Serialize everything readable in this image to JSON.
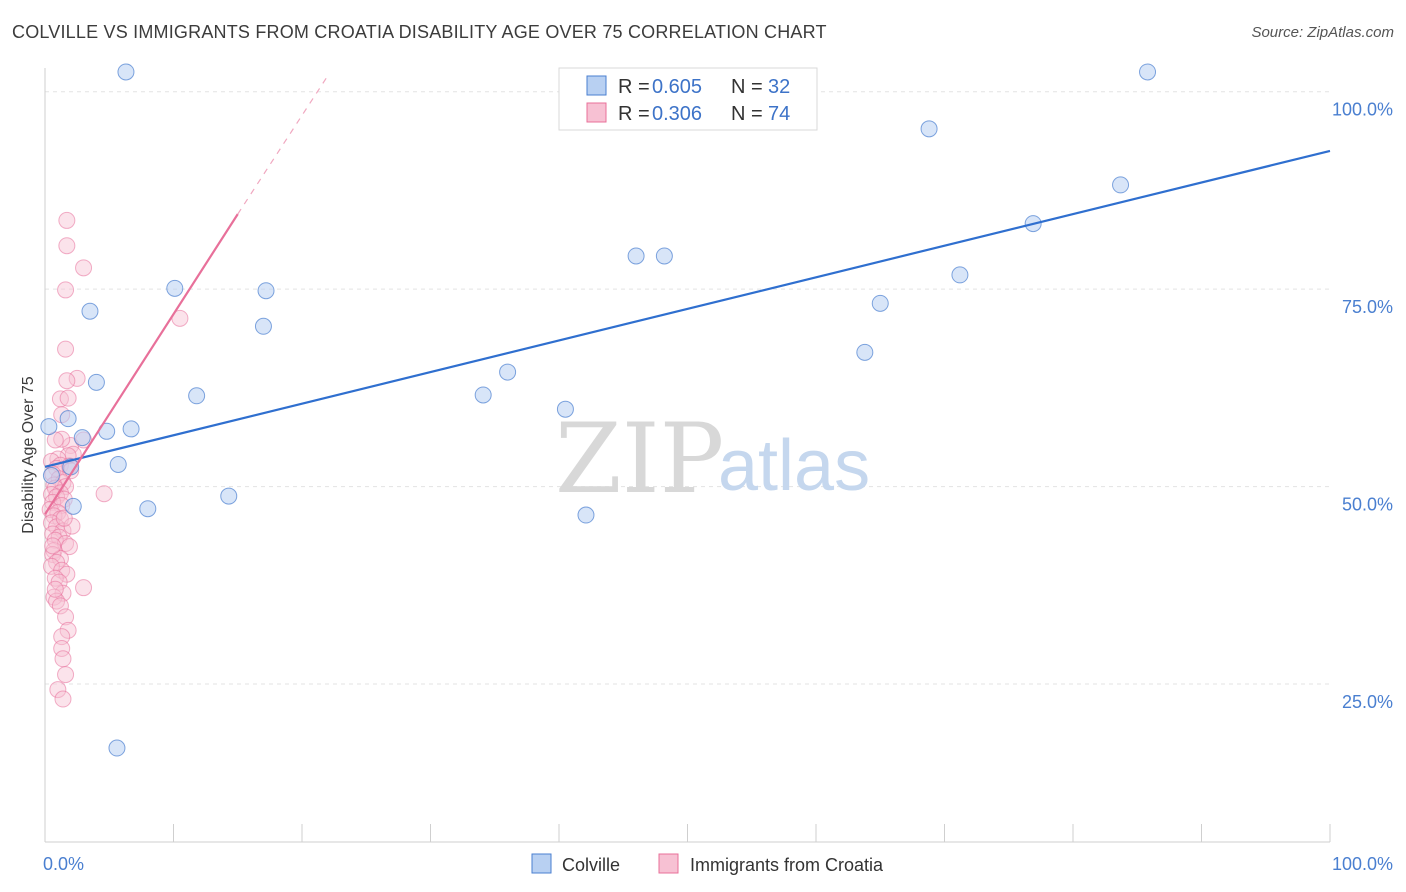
{
  "title": "COLVILLE VS IMMIGRANTS FROM CROATIA DISABILITY AGE OVER 75 CORRELATION CHART",
  "source": "Source: ZipAtlas.com",
  "watermark": {
    "zip": "ZIP",
    "atlas": "atlas"
  },
  "colors": {
    "blue": "#4a7fd0",
    "blue_fill": "#b8d0f2",
    "pink": "#e8709a",
    "pink_fill": "#f7c1d3",
    "grid": "#e3e3e3"
  },
  "legend": {
    "rows": [
      {
        "r_label": "R = ",
        "r_value": "0.605",
        "n_label": "N = ",
        "n_value": "32"
      },
      {
        "r_label": "R = ",
        "r_value": "0.306",
        "n_label": "N = ",
        "n_value": "74"
      }
    ]
  },
  "bottom_legend": [
    "Colville",
    "Immigrants from Croatia"
  ],
  "chart_data": {
    "type": "scatter",
    "title": "COLVILLE VS IMMIGRANTS FROM CROATIA DISABILITY AGE OVER 75 CORRELATION CHART",
    "xlabel": "",
    "ylabel": "Disability Age Over 75",
    "xlim": [
      0,
      100
    ],
    "ylim": [
      5,
      103
    ],
    "x_tick_labels": [
      "0.0%",
      "100.0%"
    ],
    "y_tick_labels": [
      {
        "value": 100,
        "label": "100.0%"
      },
      {
        "value": 75,
        "label": "75.0%"
      },
      {
        "value": 50,
        "label": "50.0%"
      },
      {
        "value": 25,
        "label": "25.0%"
      }
    ],
    "series": [
      {
        "name": "Colville",
        "R": 0.605,
        "N": 32,
        "trend": {
          "x0": 0,
          "y0": 52.5,
          "x1": 100,
          "y1": 92.5
        },
        "points": [
          [
            6.3,
            102.5
          ],
          [
            85.8,
            102.5
          ],
          [
            68.8,
            95.3
          ],
          [
            83.7,
            88.2
          ],
          [
            76.9,
            83.3
          ],
          [
            46.0,
            79.2
          ],
          [
            48.2,
            79.2
          ],
          [
            71.2,
            76.8
          ],
          [
            10.1,
            75.1
          ],
          [
            17.2,
            74.8
          ],
          [
            65.0,
            73.2
          ],
          [
            3.5,
            72.2
          ],
          [
            17.0,
            70.3
          ],
          [
            63.8,
            67.0
          ],
          [
            36.0,
            64.5
          ],
          [
            4.0,
            63.2
          ],
          [
            34.1,
            61.6
          ],
          [
            11.8,
            61.5
          ],
          [
            40.5,
            59.8
          ],
          [
            1.8,
            58.6
          ],
          [
            0.3,
            57.6
          ],
          [
            6.7,
            57.3
          ],
          [
            4.8,
            57.0
          ],
          [
            2.9,
            56.2
          ],
          [
            5.7,
            52.8
          ],
          [
            2.0,
            52.5
          ],
          [
            0.5,
            51.4
          ],
          [
            2.2,
            47.5
          ],
          [
            14.3,
            48.8
          ],
          [
            8.0,
            47.2
          ],
          [
            42.1,
            46.4
          ],
          [
            5.6,
            16.9
          ]
        ]
      },
      {
        "name": "Immigrants from Croatia",
        "R": 0.306,
        "N": 74,
        "trend": {
          "x0": 0,
          "y0": 46.5,
          "x1": 15.0,
          "y1": 84.5
        },
        "trend_dashed": {
          "x0": 15.0,
          "y0": 84.5,
          "x1": 22.0,
          "y1": 102.0
        },
        "points": [
          [
            1.7,
            83.7
          ],
          [
            1.7,
            80.5
          ],
          [
            3.0,
            77.7
          ],
          [
            1.6,
            74.9
          ],
          [
            10.5,
            71.3
          ],
          [
            1.6,
            67.4
          ],
          [
            2.5,
            63.7
          ],
          [
            1.7,
            63.4
          ],
          [
            1.2,
            61.1
          ],
          [
            1.8,
            61.2
          ],
          [
            1.3,
            59.1
          ],
          [
            2.0,
            55.2
          ],
          [
            1.3,
            56.0
          ],
          [
            0.8,
            55.9
          ],
          [
            2.2,
            54.1
          ],
          [
            1.8,
            53.9
          ],
          [
            1.0,
            53.5
          ],
          [
            0.5,
            53.2
          ],
          [
            1.2,
            52.7
          ],
          [
            1.9,
            52.6
          ],
          [
            0.9,
            52.3
          ],
          [
            2.0,
            52.0
          ],
          [
            0.6,
            51.6
          ],
          [
            1.1,
            51.0
          ],
          [
            1.4,
            50.5
          ],
          [
            0.7,
            50.2
          ],
          [
            1.6,
            50.0
          ],
          [
            0.8,
            49.8
          ],
          [
            1.2,
            49.2
          ],
          [
            0.5,
            49.0
          ],
          [
            0.9,
            48.7
          ],
          [
            1.5,
            48.4
          ],
          [
            0.6,
            48.0
          ],
          [
            1.3,
            47.6
          ],
          [
            0.4,
            47.1
          ],
          [
            1.0,
            46.7
          ],
          [
            0.7,
            46.3
          ],
          [
            1.2,
            45.9
          ],
          [
            0.5,
            45.4
          ],
          [
            0.9,
            44.9
          ],
          [
            1.4,
            44.4
          ],
          [
            0.6,
            44.0
          ],
          [
            1.1,
            43.6
          ],
          [
            0.8,
            43.2
          ],
          [
            1.6,
            42.8
          ],
          [
            1.9,
            42.4
          ],
          [
            0.7,
            41.9
          ],
          [
            0.6,
            41.4
          ],
          [
            1.2,
            40.9
          ],
          [
            0.9,
            40.4
          ],
          [
            0.5,
            39.9
          ],
          [
            1.3,
            39.4
          ],
          [
            1.7,
            38.9
          ],
          [
            0.8,
            38.4
          ],
          [
            1.1,
            37.9
          ],
          [
            1.4,
            36.5
          ],
          [
            0.7,
            36.0
          ],
          [
            0.9,
            35.5
          ],
          [
            1.2,
            34.9
          ],
          [
            3.0,
            37.2
          ],
          [
            4.6,
            49.1
          ],
          [
            3.0,
            55.9
          ],
          [
            1.6,
            33.5
          ],
          [
            1.8,
            31.8
          ],
          [
            1.3,
            31.0
          ],
          [
            1.3,
            29.5
          ],
          [
            1.4,
            28.2
          ],
          [
            1.6,
            26.2
          ],
          [
            1.0,
            24.3
          ],
          [
            1.4,
            23.1
          ],
          [
            0.8,
            37.0
          ],
          [
            2.1,
            45.0
          ],
          [
            0.6,
            42.5
          ],
          [
            1.5,
            46.0
          ]
        ]
      }
    ]
  }
}
